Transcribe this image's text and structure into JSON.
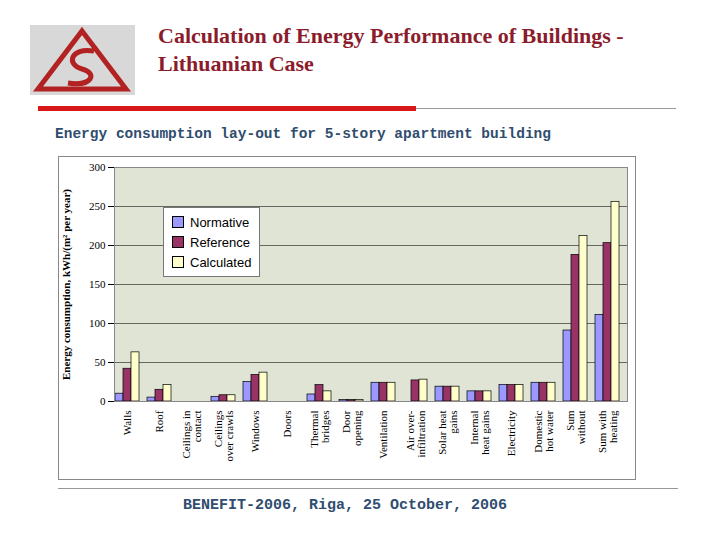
{
  "chart_data": {
    "type": "bar",
    "title": "Calculation of Energy Performance of Buildings - Lithuanian Case",
    "subtitle": "Energy consumption lay-out for 5-story apartment building",
    "caption": "BENEFIT-2006, Riga, 25 October, 2006",
    "ylabel": "Energy consumption, kWh/(m² per year)",
    "categories": [
      "Walls",
      "Roof",
      "Ceilings in\ncontact",
      "Ceilings\nover crawls",
      "Windows",
      "Doors",
      "Thermal\nbridges",
      "Door\nopening",
      "Ventilation",
      "Air over-\ninfiltration",
      "Solar heat\ngains",
      "Internal\nheat gains",
      "Electricity",
      "Domestic\nhot water",
      "Sum\nwithout",
      "Sum with\nheating"
    ],
    "series": [
      {
        "name": "Normative",
        "color": "#9999ff",
        "values": [
          10,
          5,
          0,
          6,
          25,
          0,
          9,
          2,
          24,
          0,
          19,
          13,
          21,
          24,
          91,
          111
        ]
      },
      {
        "name": "Reference",
        "color": "#993366",
        "values": [
          42,
          15,
          0,
          8,
          34,
          0,
          21,
          2,
          24,
          27,
          19,
          13,
          21,
          24,
          188,
          203
        ]
      },
      {
        "name": "Calculated",
        "color": "#ffffcc",
        "values": [
          63,
          21,
          0,
          8,
          37,
          0,
          13,
          2,
          24,
          28,
          19,
          13,
          21,
          24,
          212,
          256
        ]
      }
    ],
    "ylim": [
      0,
      300
    ],
    "yticks": [
      0,
      50,
      100,
      150,
      200,
      250,
      300
    ],
    "grid": true,
    "legend": "upper left"
  }
}
